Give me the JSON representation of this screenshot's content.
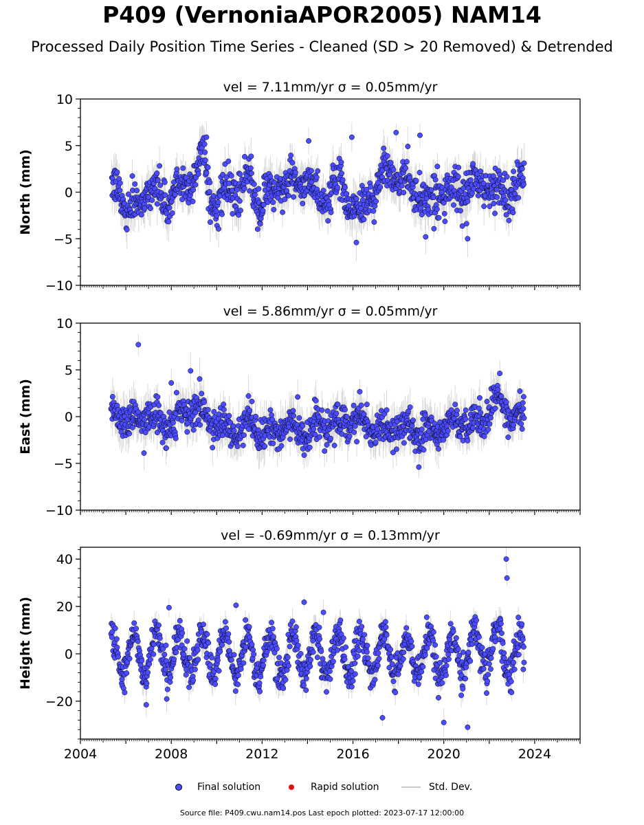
{
  "figure": {
    "title": "P409 (VernoniaAPOR2005) NAM14",
    "subtitle": "Processed Daily Position Time Series - Cleaned (SD > 20 Removed) & Detrended",
    "source": "Source file: P409.cwu.nam14.pos  Last epoch plotted: 2023-07-17 12:00:00"
  },
  "legend": {
    "final": "Final solution",
    "rapid": "Rapid solution",
    "std": "Std. Dev."
  },
  "colors": {
    "final_fill": "#4b4bff",
    "final_edge": "#000000",
    "rapid": "#e31010",
    "errbar": "#b4b4b4"
  },
  "chart_data": [
    {
      "type": "scatter",
      "panel": "north",
      "title": "vel = 7.11mm/yr   σ = 0.05mm/yr",
      "ylabel": "North (mm)",
      "xlim": [
        2004.0,
        2026.0
      ],
      "ylim": [
        -10,
        10
      ],
      "yticks": [
        -10,
        -5,
        0,
        5,
        10
      ],
      "ytick_labels": [
        "−10",
        "−5",
        "0",
        "5",
        "10"
      ],
      "x_range_data": [
        2005.35,
        2023.54
      ],
      "error_bar_typical": 1.5,
      "outliers": [
        {
          "x": 2017.9,
          "y": 6.4
        },
        {
          "x": 2018.95,
          "y": 6.1
        },
        {
          "x": 2015.95,
          "y": 5.9
        },
        {
          "x": 2014.05,
          "y": 5.5
        },
        {
          "x": 2009.55,
          "y": 5.9
        },
        {
          "x": 2021.05,
          "y": -5.0
        },
        {
          "x": 2016.15,
          "y": -5.4
        },
        {
          "x": 2019.2,
          "y": -4.8
        }
      ],
      "anchors": [
        [
          2005.3,
          -0.5
        ],
        [
          2005.7,
          0.8
        ],
        [
          2006.0,
          -1.5
        ],
        [
          2006.3,
          -2.2
        ],
        [
          2006.7,
          -0.5
        ],
        [
          2007.0,
          0.8
        ],
        [
          2007.5,
          -0.8
        ],
        [
          2008.0,
          -0.5
        ],
        [
          2008.5,
          0.5
        ],
        [
          2009.0,
          2.0
        ],
        [
          2009.4,
          4.0
        ],
        [
          2009.7,
          0.0
        ],
        [
          2010.0,
          -1.5
        ],
        [
          2010.5,
          0.0
        ],
        [
          2011.0,
          0.5
        ],
        [
          2011.5,
          1.0
        ],
        [
          2011.9,
          -1.5
        ],
        [
          2012.5,
          0.5
        ],
        [
          2013.0,
          1.0
        ],
        [
          2013.5,
          0.5
        ],
        [
          2014.0,
          1.5
        ],
        [
          2014.5,
          -1.0
        ],
        [
          2015.0,
          0.5
        ],
        [
          2015.5,
          0.5
        ],
        [
          2016.0,
          -1.0
        ],
        [
          2016.3,
          -2.8
        ],
        [
          2016.8,
          0.0
        ],
        [
          2017.3,
          1.5
        ],
        [
          2017.8,
          2.5
        ],
        [
          2018.2,
          1.0
        ],
        [
          2018.8,
          0.5
        ],
        [
          2019.3,
          -1.5
        ],
        [
          2019.8,
          0.8
        ],
        [
          2020.3,
          -0.5
        ],
        [
          2020.8,
          0.0
        ],
        [
          2021.3,
          0.5
        ],
        [
          2021.8,
          1.0
        ],
        [
          2022.3,
          -0.3
        ],
        [
          2022.8,
          0.5
        ],
        [
          2023.2,
          0.0
        ],
        [
          2023.55,
          0.5
        ]
      ],
      "seasonal_amplitude": 1.0,
      "scatter_sd": 1.0
    },
    {
      "type": "scatter",
      "panel": "east",
      "title": "vel = 5.86mm/yr   σ = 0.05mm/yr",
      "ylabel": "East (mm)",
      "xlim": [
        2004.0,
        2026.0
      ],
      "ylim": [
        -10,
        10
      ],
      "yticks": [
        -10,
        -5,
        0,
        5,
        10
      ],
      "ytick_labels": [
        "−10",
        "−5",
        "0",
        "5",
        "10"
      ],
      "x_range_data": [
        2005.35,
        2023.54
      ],
      "error_bar_typical": 1.5,
      "outliers": [
        {
          "x": 2006.55,
          "y": 7.7
        },
        {
          "x": 2008.0,
          "y": 3.6
        },
        {
          "x": 2008.85,
          "y": 4.9
        },
        {
          "x": 2018.9,
          "y": -5.4
        },
        {
          "x": 2006.8,
          "y": -3.9
        }
      ],
      "anchors": [
        [
          2005.3,
          0.5
        ],
        [
          2006.0,
          0.0
        ],
        [
          2006.5,
          -0.5
        ],
        [
          2007.0,
          0.5
        ],
        [
          2007.5,
          -1.0
        ],
        [
          2008.0,
          -0.5
        ],
        [
          2008.5,
          0.0
        ],
        [
          2009.0,
          1.0
        ],
        [
          2009.5,
          0.0
        ],
        [
          2010.0,
          -1.0
        ],
        [
          2010.5,
          -1.5
        ],
        [
          2011.0,
          -1.5
        ],
        [
          2011.5,
          -0.5
        ],
        [
          2012.0,
          -2.0
        ],
        [
          2012.5,
          -1.5
        ],
        [
          2013.0,
          -1.0
        ],
        [
          2013.5,
          -1.5
        ],
        [
          2014.0,
          -1.5
        ],
        [
          2014.5,
          -1.0
        ],
        [
          2015.0,
          -1.0
        ],
        [
          2015.5,
          -0.5
        ],
        [
          2016.0,
          0.0
        ],
        [
          2016.5,
          -0.8
        ],
        [
          2017.0,
          -1.0
        ],
        [
          2017.5,
          -1.5
        ],
        [
          2018.0,
          -1.0
        ],
        [
          2018.5,
          -1.5
        ],
        [
          2019.0,
          -2.0
        ],
        [
          2019.5,
          -1.5
        ],
        [
          2020.0,
          -1.5
        ],
        [
          2020.5,
          -0.5
        ],
        [
          2021.0,
          -1.0
        ],
        [
          2021.5,
          -1.0
        ],
        [
          2022.0,
          1.0
        ],
        [
          2022.5,
          1.5
        ],
        [
          2023.0,
          0.0
        ],
        [
          2023.55,
          0.5
        ]
      ],
      "seasonal_amplitude": 0.8,
      "scatter_sd": 0.9
    },
    {
      "type": "scatter",
      "panel": "height",
      "title": "vel = -0.69mm/yr   σ = 0.13mm/yr",
      "ylabel": "Height (mm)",
      "xlim": [
        2004.0,
        2026.0
      ],
      "ylim": [
        -36,
        45
      ],
      "yticks": [
        -20,
        0,
        20,
        40
      ],
      "ytick_labels": [
        "−20",
        "0",
        "20",
        "40"
      ],
      "xticks": [
        2004,
        2008,
        2012,
        2016,
        2020,
        2024
      ],
      "xtick_labels": [
        "2004",
        "2008",
        "2012",
        "2016",
        "2020",
        "2024"
      ],
      "x_range_data": [
        2005.35,
        2023.54
      ],
      "error_bar_typical": 4.0,
      "outliers": [
        {
          "x": 2022.75,
          "y": 40.0
        },
        {
          "x": 2022.78,
          "y": 32.0
        },
        {
          "x": 2020.0,
          "y": -29.0
        },
        {
          "x": 2021.05,
          "y": -31.0
        },
        {
          "x": 2017.3,
          "y": -27.0
        },
        {
          "x": 2006.9,
          "y": -21.5
        },
        {
          "x": 2013.85,
          "y": 21.8
        },
        {
          "x": 2014.7,
          "y": 17.5
        },
        {
          "x": 2007.9,
          "y": 19.5
        },
        {
          "x": 2010.85,
          "y": 20.5
        }
      ],
      "anchors": [
        [
          2005.3,
          0.0
        ],
        [
          2008.0,
          0.0
        ],
        [
          2012.0,
          -1.0
        ],
        [
          2016.0,
          0.0
        ],
        [
          2020.0,
          -1.0
        ],
        [
          2022.5,
          3.0
        ],
        [
          2023.55,
          -3.0
        ]
      ],
      "seasonal_amplitude": 9.0,
      "scatter_sd": 3.5
    }
  ]
}
